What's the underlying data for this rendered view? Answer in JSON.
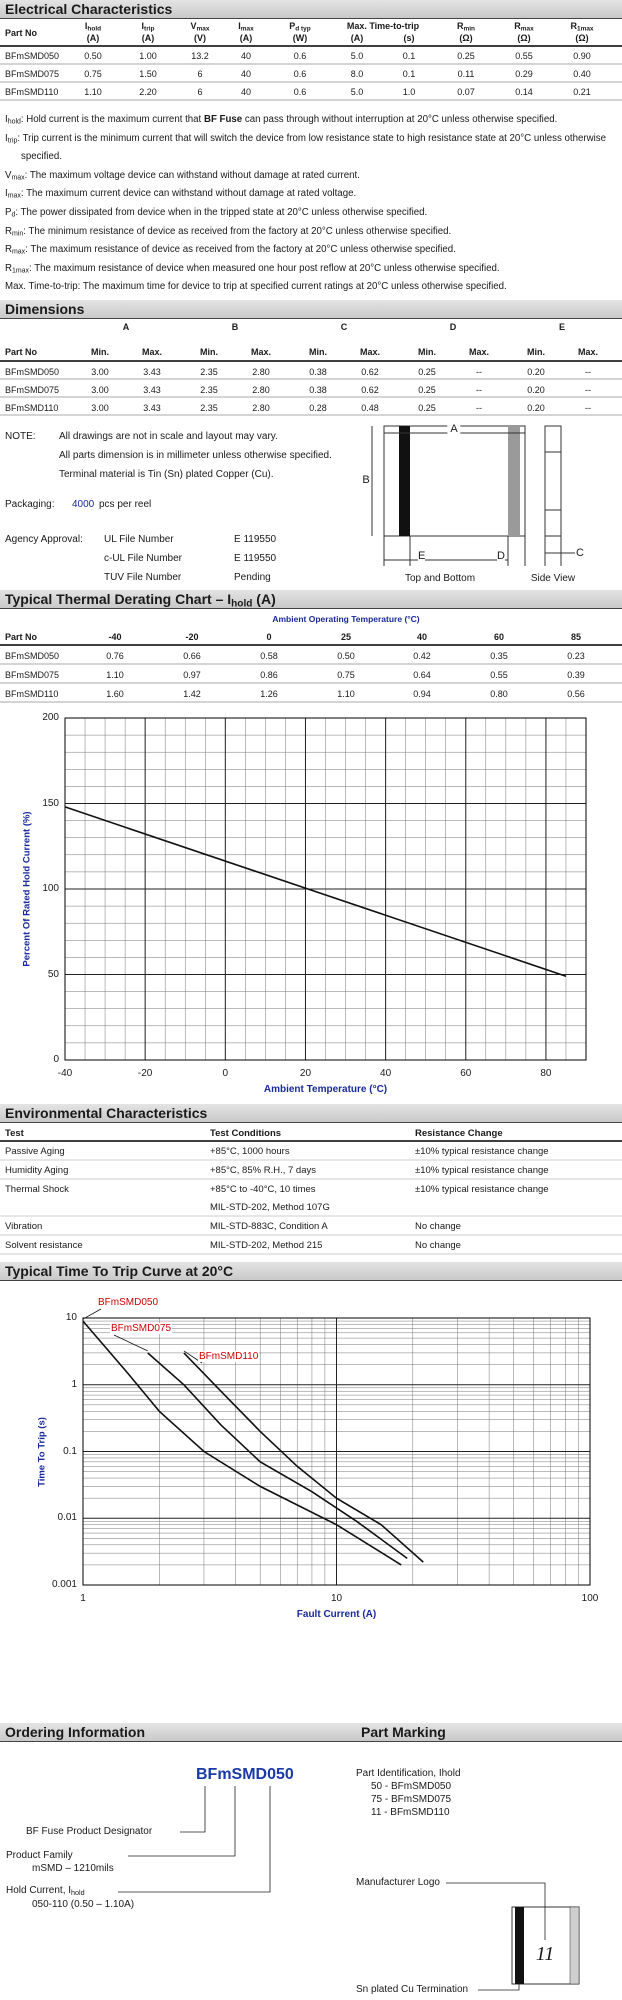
{
  "electrical": {
    "title": "Electrical Characteristics",
    "span_header": "Max. Time-to-trip",
    "columns": [
      {
        "name": "Part No"
      },
      {
        "sym": "I",
        "sub": "hold",
        "unit": "(A)"
      },
      {
        "sym": "I",
        "sub": "trip",
        "unit": "(A)"
      },
      {
        "sym": "V",
        "sub": "max",
        "unit": "(V)"
      },
      {
        "sym": "I",
        "sub": "max",
        "unit": "(A)"
      },
      {
        "sym": "P",
        "sub": "d typ",
        "unit": "(W)"
      },
      {
        "unit": "(A)"
      },
      {
        "unit": "(s)"
      },
      {
        "sym": "R",
        "sub": "min",
        "unit": "(Ω)"
      },
      {
        "sym": "R",
        "sub": "max",
        "unit": "(Ω)"
      },
      {
        "sym": "R",
        "sub": "1max",
        "unit": "(Ω)"
      }
    ],
    "rows": [
      [
        "BFmSMD050",
        "0.50",
        "1.00",
        "13.2",
        "40",
        "0.6",
        "5.0",
        "0.1",
        "0.25",
        "0.55",
        "0.90"
      ],
      [
        "BFmSMD075",
        "0.75",
        "1.50",
        "6",
        "40",
        "0.6",
        "8.0",
        "0.1",
        "0.11",
        "0.29",
        "0.40"
      ],
      [
        "BFmSMD110",
        "1.10",
        "2.20",
        "6",
        "40",
        "0.6",
        "5.0",
        "1.0",
        "0.07",
        "0.14",
        "0.21"
      ]
    ]
  },
  "definitions": [
    {
      "sym": "I",
      "sub": "hold",
      "text": ": Hold current is the maximum current that ",
      "bold": "BF Fuse",
      "text2": " can pass through without interruption at 20°C unless otherwise specified."
    },
    {
      "sym": "I",
      "sub": "trip",
      "text": ": Trip current is the minimum current that will switch the device from low resistance state to high resistance state at 20°C unless otherwise specified."
    },
    {
      "sym": "V",
      "sub": "max",
      "text": ": The maximum voltage device can withstand without damage at rated current."
    },
    {
      "sym": "I",
      "sub": "max",
      "text": ": The maximum current device can withstand without damage at rated voltage."
    },
    {
      "sym": "P",
      "sub": "d",
      "text": ": The power dissipated from device when in the tripped state at 20°C unless otherwise specified."
    },
    {
      "sym": "R",
      "sub": "min",
      "text": ": The minimum resistance of device as received from the factory at 20°C unless otherwise specified."
    },
    {
      "sym": "R",
      "sub": "max",
      "text": ": The maximum resistance of device as received from the factory at 20°C unless otherwise specified."
    },
    {
      "sym": "R",
      "sub": "1max",
      "text": ": The maximum resistance of device when measured one hour post reflow at 20°C unless otherwise specified."
    },
    {
      "text": "Max. Time-to-trip: The maximum time for device to trip at specified current ratings at 20°C unless otherwise specified."
    }
  ],
  "dimensions": {
    "title": "Dimensions",
    "groups": [
      "A",
      "B",
      "C",
      "D",
      "E"
    ],
    "columns": [
      "Part No",
      "Min.",
      "Max.",
      "Min.",
      "Max.",
      "Min.",
      "Max.",
      "Min.",
      "Max.",
      "Min.",
      "Max."
    ],
    "rows": [
      [
        "BFmSMD050",
        "3.00",
        "3.43",
        "2.35",
        "2.80",
        "0.38",
        "0.62",
        "0.25",
        "--",
        "0.20",
        "--"
      ],
      [
        "BFmSMD075",
        "3.00",
        "3.43",
        "2.35",
        "2.80",
        "0.38",
        "0.62",
        "0.25",
        "--",
        "0.20",
        "--"
      ],
      [
        "BFmSMD110",
        "3.00",
        "3.43",
        "2.35",
        "2.80",
        "0.28",
        "0.48",
        "0.25",
        "--",
        "0.20",
        "--"
      ]
    ],
    "note_label": "NOTE:",
    "notes": [
      "All drawings are not in scale and layout may vary.",
      "All parts dimension is in millimeter unless otherwise specified.",
      "Terminal material is Tin (Sn) plated Copper (Cu)."
    ],
    "packaging_label": "Packaging:",
    "packaging_qty": "4000",
    "packaging_unit": "pcs per reel",
    "agency_label": "Agency Approval:",
    "agency": [
      [
        "UL File Number",
        "E 119550"
      ],
      [
        "c-UL File Number",
        "E 119550"
      ],
      [
        "TUV File Number",
        "Pending"
      ]
    ],
    "diagram": {
      "a": "A",
      "b": "B",
      "c": "C",
      "d": "D",
      "e": "E",
      "top_view": "Top and Bottom",
      "side_view": "Side View"
    }
  },
  "thermal": {
    "title": "Typical Thermal Derating Chart – I",
    "title_sub": "hold",
    "title_end": " (A)",
    "subtitle": "Ambient Operating Temperature (°C)",
    "columns": [
      "Part No",
      "-40",
      "-20",
      "0",
      "25",
      "40",
      "60",
      "85"
    ],
    "rows": [
      [
        "BFmSMD050",
        "0.76",
        "0.66",
        "0.58",
        "0.50",
        "0.42",
        "0.35",
        "0.23"
      ],
      [
        "BFmSMD075",
        "1.10",
        "0.97",
        "0.86",
        "0.75",
        "0.64",
        "0.55",
        "0.39"
      ],
      [
        "BFmSMD110",
        "1.60",
        "1.42",
        "1.26",
        "1.10",
        "0.94",
        "0.80",
        "0.56"
      ]
    ]
  },
  "environmental": {
    "title": "Environmental Characteristics",
    "columns": [
      "Test",
      "Test Conditions",
      "Resistance Change"
    ],
    "rows": [
      {
        "test": "Passive Aging",
        "conditions": [
          "+85°C, 1000 hours"
        ],
        "change": "±10% typical resistance change"
      },
      {
        "test": "Humidity Aging",
        "conditions": [
          "+85°C, 85% R.H., 7 days"
        ],
        "change": "±10% typical resistance change"
      },
      {
        "test": "Thermal Shock",
        "conditions": [
          "+85°C to -40°C, 10 times",
          "MIL-STD-202, Method 107G"
        ],
        "change": "±10% typical resistance change"
      },
      {
        "test": "Vibration",
        "conditions": [
          "MIL-STD-883C, Condition A"
        ],
        "change": "No change"
      },
      {
        "test": "Solvent resistance",
        "conditions": [
          "MIL-STD-202, Method 215"
        ],
        "change": "No change"
      }
    ]
  },
  "trip": {
    "title": "Typical Time To Trip Curve at 20°C"
  },
  "chart_data": [
    {
      "type": "line",
      "xlabel": "Ambient Temperature (°C)",
      "ylabel": "Percent Of Rated Hold Current (%)",
      "x": [
        -40,
        85
      ],
      "series": [
        {
          "color": "#111111",
          "values": [
            148,
            49
          ]
        }
      ],
      "xlim": [
        -40,
        90
      ],
      "ylim": [
        0,
        200
      ],
      "xticks": [
        -40,
        -20,
        0,
        20,
        40,
        60,
        80
      ],
      "yticks": [
        0,
        50,
        100,
        150,
        200
      ],
      "grid": true
    },
    {
      "type": "line",
      "log_scale": true,
      "xlabel": "Fault Current (A)",
      "ylabel": "Time To Trip (s)",
      "xlim": [
        1,
        100
      ],
      "ylim": [
        0.001,
        10
      ],
      "xticks": [
        1,
        10,
        100
      ],
      "yticks": [
        0.001,
        0.01,
        0.1,
        1,
        10
      ],
      "grid": true,
      "label_color": "#cc0000",
      "series": [
        {
          "name": "BFmSMD050",
          "color": "#111111",
          "x": [
            1,
            1.5,
            2,
            3,
            5,
            10,
            18
          ],
          "values": [
            9,
            1.5,
            0.4,
            0.1,
            0.03,
            0.008,
            0.002
          ]
        },
        {
          "name": "BFmSMD075",
          "color": "#111111",
          "x": [
            1.8,
            2.5,
            3.5,
            5,
            8,
            12,
            19
          ],
          "values": [
            3,
            1,
            0.25,
            0.07,
            0.025,
            0.009,
            0.0025
          ]
        },
        {
          "name": "BFmSMD110",
          "color": "#111111",
          "x": [
            2.5,
            3.5,
            5,
            7,
            10,
            15,
            22
          ],
          "values": [
            3,
            0.8,
            0.2,
            0.06,
            0.02,
            0.008,
            0.0022
          ]
        }
      ]
    }
  ],
  "ordering": {
    "title": "Ordering Information",
    "code": "BFmSMD050",
    "designator": "BF Fuse Product Designator",
    "family": "Product Family",
    "family_value": "mSMD – 1210mils",
    "hold": {
      "sym": "Hold Current, I",
      "sub": "hold"
    },
    "hold_value": "050-110 (0.50 – 1.10A)"
  },
  "marking": {
    "title": "Part Marking",
    "identification": "Part Identification, Ihold",
    "codes": [
      "50 - BFmSMD050",
      "75 - BFmSMD075",
      "11 - BFmSMD110"
    ],
    "logo": "Manufacturer Logo",
    "termination": "Sn plated Cu Termination",
    "mark": "11"
  }
}
